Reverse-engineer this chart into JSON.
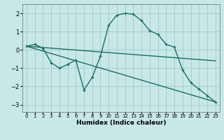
{
  "xlabel": "Humidex (Indice chaleur)",
  "bg_color": "#c8e8e8",
  "grid_color": "#a8cccc",
  "line_color": "#1a6e60",
  "xlim": [
    -0.5,
    23.5
  ],
  "ylim": [
    -3.4,
    2.5
  ],
  "xticks": [
    0,
    1,
    2,
    3,
    4,
    5,
    6,
    7,
    8,
    9,
    10,
    11,
    12,
    13,
    14,
    15,
    16,
    17,
    18,
    19,
    20,
    21,
    22,
    23
  ],
  "yticks": [
    -3,
    -2,
    -1,
    0,
    1,
    2
  ],
  "line1_x": [
    0,
    1,
    2,
    3,
    4,
    5,
    6,
    7,
    8,
    9,
    10,
    11,
    12,
    13,
    14,
    15,
    16,
    17,
    18,
    19,
    20,
    21,
    22,
    23
  ],
  "line1_y": [
    0.2,
    0.3,
    0.1,
    -0.7,
    -1.0,
    -0.8,
    -0.55,
    -2.2,
    -1.5,
    -0.35,
    1.35,
    1.9,
    2.0,
    1.95,
    1.6,
    1.05,
    0.85,
    0.3,
    0.15,
    -1.1,
    -1.8,
    -2.15,
    -2.5,
    -2.85
  ],
  "line2_x": [
    0,
    23
  ],
  "line2_y": [
    0.2,
    -0.6
  ],
  "line3_x": [
    0,
    23
  ],
  "line3_y": [
    0.2,
    -2.85
  ]
}
